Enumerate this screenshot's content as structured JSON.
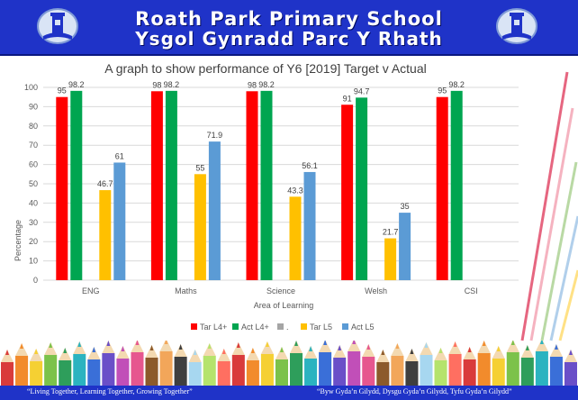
{
  "banner": {
    "title_en": "Roath Park Primary School",
    "title_cy": "Ysgol Gynradd Parc Y Rhath"
  },
  "footer": {
    "motto_en": "“Living Together, Learning Together, Growing Together”",
    "motto_cy": "“Byw Gyda’n Gilydd, Dysgu Gyda’n Gilydd, Tyfu Gyda’n Gilydd”"
  },
  "chart_data": {
    "type": "bar",
    "title": "A graph to show performance of Y6 [2019] Target v Actual",
    "xlabel": "Area of Learning",
    "ylabel": "Percentage",
    "ylim": [
      0,
      100
    ],
    "yticks": [
      0,
      10,
      20,
      30,
      40,
      50,
      60,
      70,
      80,
      90,
      100
    ],
    "grid": true,
    "legend_position": "bottom",
    "categories": [
      "ENG",
      "Maths",
      "Science",
      "Welsh",
      "CSI"
    ],
    "series": [
      {
        "name": "Tar L4+",
        "color": "#ff0000",
        "values": [
          95,
          98,
          98,
          91,
          95
        ]
      },
      {
        "name": "Act L4+",
        "color": "#00a550",
        "values": [
          98.2,
          98.2,
          98.2,
          94.7,
          98.2
        ]
      },
      {
        "name": ".",
        "color": "#a5a5a5",
        "values": [
          null,
          null,
          null,
          null,
          null
        ]
      },
      {
        "name": "Tar L5",
        "color": "#ffc000",
        "values": [
          46.7,
          55,
          43.3,
          21.7,
          null
        ]
      },
      {
        "name": "Act L5",
        "color": "#5b9bd5",
        "values": [
          61,
          71.9,
          56.1,
          35,
          null
        ]
      }
    ]
  }
}
